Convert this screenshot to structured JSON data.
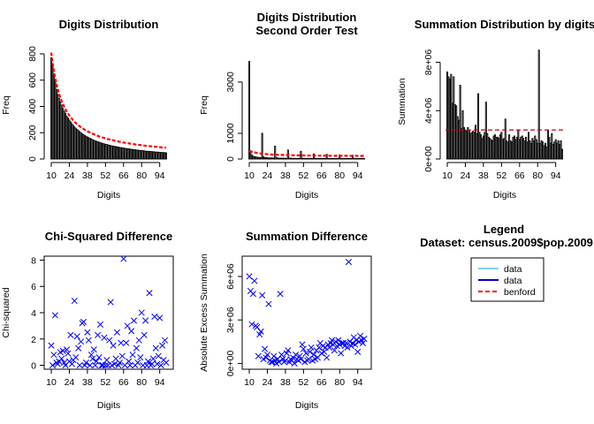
{
  "chart_data": [
    {
      "id": "p1",
      "type": "bar",
      "title": [
        "Digits Distribution"
      ],
      "xlabel": "Digits",
      "ylabel": "Freq",
      "x_range": [
        10,
        99
      ],
      "xticks": [
        10,
        24,
        38,
        52,
        66,
        80,
        94
      ],
      "ylim": [
        0,
        820
      ],
      "yticks": [
        0,
        200,
        400,
        600,
        800
      ],
      "y_tick_labels": [
        "0",
        "200",
        "400",
        "600",
        "800"
      ],
      "y_tick_rotated": true,
      "bar_color": "#000000",
      "series": [
        {
          "name": "data",
          "values": [
            770,
            700,
            640,
            585,
            530,
            492,
            462,
            435,
            410,
            385,
            365,
            348,
            325,
            312,
            297,
            282,
            268,
            256,
            244,
            234,
            225,
            217,
            208,
            200,
            192,
            185,
            179,
            173,
            167,
            162,
            157,
            152,
            147,
            143,
            139,
            135,
            131,
            128,
            124,
            121,
            118,
            115,
            112,
            110,
            107,
            105,
            102,
            100,
            98,
            96,
            94,
            92,
            90,
            88,
            86,
            85,
            83,
            81,
            80,
            78,
            77,
            75,
            74,
            72,
            71,
            70,
            68,
            67,
            66,
            65,
            64,
            63,
            62,
            60,
            59,
            58,
            58,
            57,
            56,
            55,
            54,
            53,
            52,
            52,
            51,
            50,
            49,
            49,
            48,
            47
          ]
        },
        {
          "name": "benford",
          "values": [
            810,
            735,
            672,
            619,
            573,
            534,
            499,
            469,
            442,
            419,
            397,
            378,
            361,
            345,
            331,
            318,
            306,
            294,
            284,
            274,
            265,
            257,
            249,
            242,
            235,
            228,
            222,
            217,
            211,
            206,
            201,
            196,
            192,
            188,
            184,
            180,
            176,
            172,
            169,
            166,
            163,
            160,
            157,
            154,
            151,
            149,
            146,
            144,
            142,
            139,
            137,
            135,
            133,
            131,
            129,
            127,
            125,
            124,
            122,
            120,
            119,
            117,
            116,
            114,
            113,
            111,
            110,
            109,
            107,
            106,
            105,
            104,
            102,
            101,
            100,
            99,
            98,
            97,
            96,
            95,
            94,
            93,
            92,
            91,
            90,
            89,
            88,
            88,
            87,
            86
          ]
        }
      ],
      "benford_color": "#ff0000"
    },
    {
      "id": "p2",
      "type": "bar",
      "title": [
        "Digits Distribution",
        "Second Order Test"
      ],
      "xlabel": "Digits",
      "ylabel": "Freq",
      "x_range": [
        10,
        99
      ],
      "xticks": [
        10,
        24,
        38,
        52,
        66,
        80,
        94
      ],
      "ylim": [
        0,
        4200
      ],
      "yticks": [
        0,
        1000,
        3000
      ],
      "y_tick_labels": [
        "0",
        "1000",
        "3000"
      ],
      "y_tick_rotated": true,
      "bar_color": "#000000",
      "series": [
        {
          "name": "data",
          "values": [
            3800,
            320,
            150,
            110,
            90,
            80,
            70,
            60,
            60,
            50,
            1000,
            80,
            60,
            50,
            50,
            40,
            40,
            40,
            40,
            30,
            500,
            60,
            40,
            30,
            30,
            30,
            30,
            30,
            25,
            25,
            350,
            40,
            30,
            25,
            25,
            25,
            20,
            20,
            20,
            20,
            300,
            30,
            25,
            20,
            20,
            20,
            20,
            20,
            20,
            20,
            200,
            25,
            20,
            20,
            20,
            20,
            20,
            20,
            20,
            20,
            180,
            20,
            20,
            20,
            20,
            20,
            20,
            20,
            20,
            20,
            160,
            20,
            20,
            20,
            20,
            20,
            20,
            20,
            20,
            20,
            150,
            20,
            20,
            20,
            20,
            20,
            20,
            20,
            20,
            20
          ]
        },
        {
          "name": "benford",
          "values": [
            320,
            300,
            285,
            270,
            258,
            247,
            237,
            228,
            220,
            213,
            207,
            201,
            196,
            191,
            187,
            183,
            179,
            176,
            173,
            170,
            168,
            166,
            164,
            162,
            160,
            158,
            156,
            155,
            153,
            152,
            151,
            150,
            148,
            147,
            146,
            145,
            144,
            143,
            142,
            141,
            140,
            139,
            139,
            138,
            137,
            136,
            136,
            135,
            134,
            134,
            133,
            133,
            132,
            132,
            131,
            131,
            130,
            130,
            129,
            129,
            128,
            128,
            128,
            127,
            127,
            127,
            126,
            126,
            126,
            125,
            125,
            125,
            124,
            124,
            124,
            124,
            123,
            123,
            123,
            123,
            122,
            122,
            122,
            122,
            122,
            121,
            121,
            121,
            121,
            121
          ]
        }
      ],
      "benford_color": "#ff0000"
    },
    {
      "id": "p3",
      "type": "bar",
      "title": [
        "Summation Distribution by digits"
      ],
      "xlabel": "Digits",
      "ylabel": "Summation",
      "x_range": [
        10,
        99
      ],
      "xticks": [
        10,
        24,
        38,
        52,
        66,
        80,
        94
      ],
      "ylim": [
        0,
        9500000
      ],
      "yticks": [
        0,
        4000000,
        8000000
      ],
      "y_tick_labels": [
        "0e+00",
        "4e+06",
        "8e+06"
      ],
      "y_tick_rotated": true,
      "bar_color": "#000000",
      "series": [
        {
          "name": "data",
          "values": [
            7200000,
            6800000,
            6600000,
            7000000,
            4600000,
            6800000,
            4500000,
            4400000,
            3500000,
            3200000,
            6100000,
            2500000,
            4000000,
            2600000,
            2400000,
            2300000,
            2600000,
            2400000,
            2100000,
            2200000,
            2300000,
            2200000,
            2800000,
            2100000,
            5400000,
            2200000,
            2000000,
            1700000,
            1900000,
            2200000,
            4700000,
            2100000,
            1800000,
            1700000,
            1600000,
            1500000,
            1900000,
            2000000,
            1800000,
            1800000,
            1700000,
            2000000,
            2200000,
            1600000,
            1700000,
            3300000,
            1500000,
            1400000,
            2000000,
            1500000,
            1400000,
            1800000,
            1900000,
            1600000,
            1800000,
            2400000,
            1600000,
            1800000,
            1900000,
            1700000,
            1500000,
            1800000,
            1400000,
            2200000,
            1500000,
            1300000,
            1700000,
            1500000,
            1900000,
            1600000,
            1300000,
            9000000,
            1300000,
            1500000,
            1400000,
            1100000,
            1300000,
            1000000,
            2400000,
            1800000,
            1300000,
            2100000,
            1200000,
            1400000,
            1600000,
            1300000,
            1500000,
            1200000,
            1500000,
            800000
          ]
        },
        {
          "name": "benford",
          "values": [
            2400000
          ]
        }
      ],
      "benford_color": "#cc0000"
    },
    {
      "id": "p4",
      "type": "scatter",
      "title": [
        "Chi-Squared Difference"
      ],
      "xlabel": "Digits",
      "ylabel": "Chi-squared",
      "x_range": [
        10,
        99
      ],
      "xticks": [
        10,
        24,
        38,
        52,
        66,
        80,
        94
      ],
      "ylim": [
        -0.3,
        8.3
      ],
      "yticks": [
        0,
        2,
        4,
        6,
        8
      ],
      "y_tick_labels": [
        "0",
        "2",
        "4",
        "6",
        "8"
      ],
      "y_tick_rotated": false,
      "point_color": "#0000ff",
      "x": [
        10,
        11,
        12,
        13,
        14,
        15,
        16,
        17,
        18,
        19,
        20,
        21,
        22,
        23,
        24,
        25,
        26,
        27,
        28,
        29,
        30,
        31,
        32,
        33,
        34,
        35,
        36,
        37,
        38,
        39,
        40,
        41,
        42,
        43,
        44,
        45,
        46,
        47,
        48,
        49,
        50,
        51,
        52,
        53,
        54,
        55,
        56,
        57,
        58,
        59,
        60,
        61,
        62,
        63,
        64,
        65,
        66,
        67,
        68,
        69,
        70,
        71,
        72,
        73,
        74,
        75,
        76,
        77,
        78,
        79,
        80,
        81,
        82,
        83,
        84,
        85,
        86,
        87,
        88,
        89,
        90,
        91,
        92,
        93,
        94,
        95,
        96,
        97,
        98,
        99
      ],
      "y": [
        1.5,
        0.0,
        0.8,
        3.8,
        0.2,
        0.1,
        0.3,
        1.0,
        0.5,
        1.1,
        0.2,
        0.0,
        1.2,
        0.9,
        0.3,
        2.3,
        0.1,
        0.4,
        4.9,
        0.6,
        2.2,
        1.3,
        0.0,
        1.8,
        3.2,
        3.3,
        0.0,
        0.2,
        2.5,
        1.9,
        0.0,
        0.8,
        0.5,
        1.2,
        0.0,
        0.3,
        2.3,
        0.6,
        3.1,
        0.0,
        0.0,
        2.1,
        0.0,
        0.4,
        0.0,
        1.9,
        4.8,
        0.0,
        1.5,
        0.1,
        0.5,
        2.5,
        0.0,
        0.2,
        1.7,
        0.7,
        8.1,
        0.0,
        1.7,
        3.0,
        0.3,
        0.0,
        2.6,
        0.8,
        3.4,
        0.0,
        1.3,
        0.2,
        1.9,
        0.6,
        4.0,
        0.0,
        2.3,
        3.4,
        0.0,
        0.3,
        5.5,
        0.0,
        0.1,
        0.5,
        3.7,
        1.3,
        0.1,
        0.7,
        3.6,
        0.0,
        1.5,
        0.4,
        1.9,
        0.2
      ]
    },
    {
      "id": "p5",
      "type": "scatter",
      "title": [
        "Summation Difference"
      ],
      "xlabel": "Digits",
      "ylabel": "Absolute Excess Summation",
      "x_range": [
        10,
        99
      ],
      "xticks": [
        10,
        24,
        38,
        52,
        66,
        80,
        94
      ],
      "ylim": [
        -400000,
        7400000
      ],
      "yticks": [
        0,
        3000000,
        6000000
      ],
      "y_tick_labels": [
        "0e+00",
        "3e+06",
        "6e+06"
      ],
      "y_tick_rotated": true,
      "point_color": "#0000ff",
      "x": [
        10,
        11,
        12,
        13,
        14,
        15,
        16,
        17,
        18,
        19,
        20,
        21,
        22,
        23,
        24,
        25,
        26,
        27,
        28,
        29,
        30,
        31,
        32,
        33,
        34,
        35,
        36,
        37,
        38,
        39,
        40,
        41,
        42,
        43,
        44,
        45,
        46,
        47,
        48,
        49,
        50,
        51,
        52,
        53,
        54,
        55,
        56,
        57,
        58,
        59,
        60,
        61,
        62,
        63,
        64,
        65,
        66,
        67,
        68,
        69,
        70,
        71,
        72,
        73,
        74,
        75,
        76,
        77,
        78,
        79,
        80,
        81,
        82,
        83,
        84,
        85,
        86,
        87,
        88,
        89,
        90,
        91,
        92,
        93,
        94,
        95,
        96,
        97,
        98,
        99
      ],
      "y": [
        6000000,
        5000000,
        2700000,
        4800000,
        5700000,
        2600000,
        2500000,
        500000,
        2000000,
        2200000,
        4700000,
        300000,
        1000000,
        400000,
        600000,
        4100000,
        200000,
        100000,
        100000,
        500000,
        200000,
        0,
        300000,
        100000,
        4800000,
        600000,
        300000,
        100000,
        200000,
        700000,
        900000,
        100000,
        300000,
        200000,
        400000,
        0,
        600000,
        300000,
        200000,
        500000,
        300000,
        1300000,
        1000000,
        100000,
        700000,
        200000,
        300000,
        800000,
        1100000,
        200000,
        600000,
        300000,
        900000,
        400000,
        1100000,
        1400000,
        700000,
        1200000,
        800000,
        1100000,
        400000,
        1300000,
        1100000,
        1400000,
        1600000,
        1300000,
        900000,
        1500000,
        1200000,
        1600000,
        1300000,
        700000,
        1400000,
        1400000,
        1200000,
        1400000,
        1100000,
        7000000,
        1500000,
        1200000,
        1400000,
        1800000,
        1300000,
        1600000,
        800000,
        1500000,
        1900000,
        1600000,
        1400000,
        1700000
      ]
    }
  ],
  "legend": {
    "title": "Legend",
    "subtitle": "Dataset: census.2009$pop.2009",
    "items": [
      {
        "label": "data",
        "color": "#87ceeb",
        "style": "solid"
      },
      {
        "label": "data",
        "color": "#0000cd",
        "style": "solid"
      },
      {
        "label": "benford",
        "color": "#ff0000",
        "style": "dashed"
      }
    ]
  }
}
